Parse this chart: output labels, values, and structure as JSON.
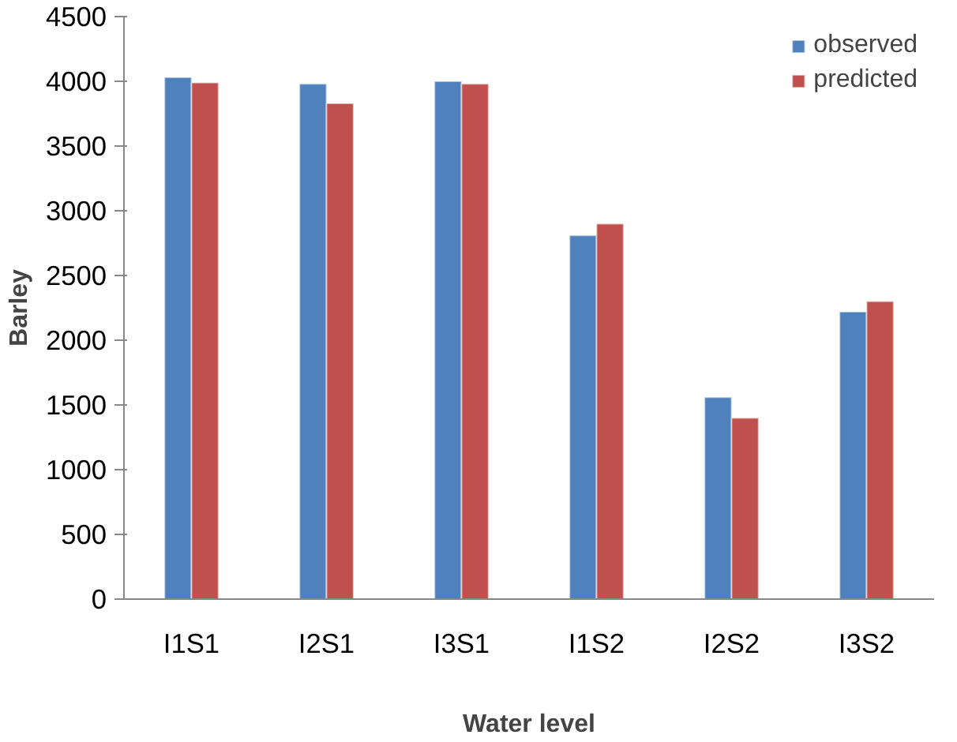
{
  "chart_data": {
    "type": "bar",
    "xlabel": "Water level",
    "ylabel": "Barley",
    "categories": [
      "I1S1",
      "I2S1",
      "I3S1",
      "I1S2",
      "I2S2",
      "I3S2"
    ],
    "series": [
      {
        "name": "observed",
        "color": "#4f81bd",
        "values": [
          4030,
          3980,
          4000,
          2810,
          1560,
          2220
        ]
      },
      {
        "name": "predicted",
        "color": "#c0504d",
        "values": [
          3990,
          3830,
          3980,
          2900,
          1400,
          2300
        ]
      }
    ],
    "ylim": [
      0,
      4500
    ],
    "yticks": [
      0,
      500,
      1000,
      1500,
      2000,
      2500,
      3000,
      3500,
      4000,
      4500
    ],
    "grid": false,
    "legend": "top right"
  }
}
